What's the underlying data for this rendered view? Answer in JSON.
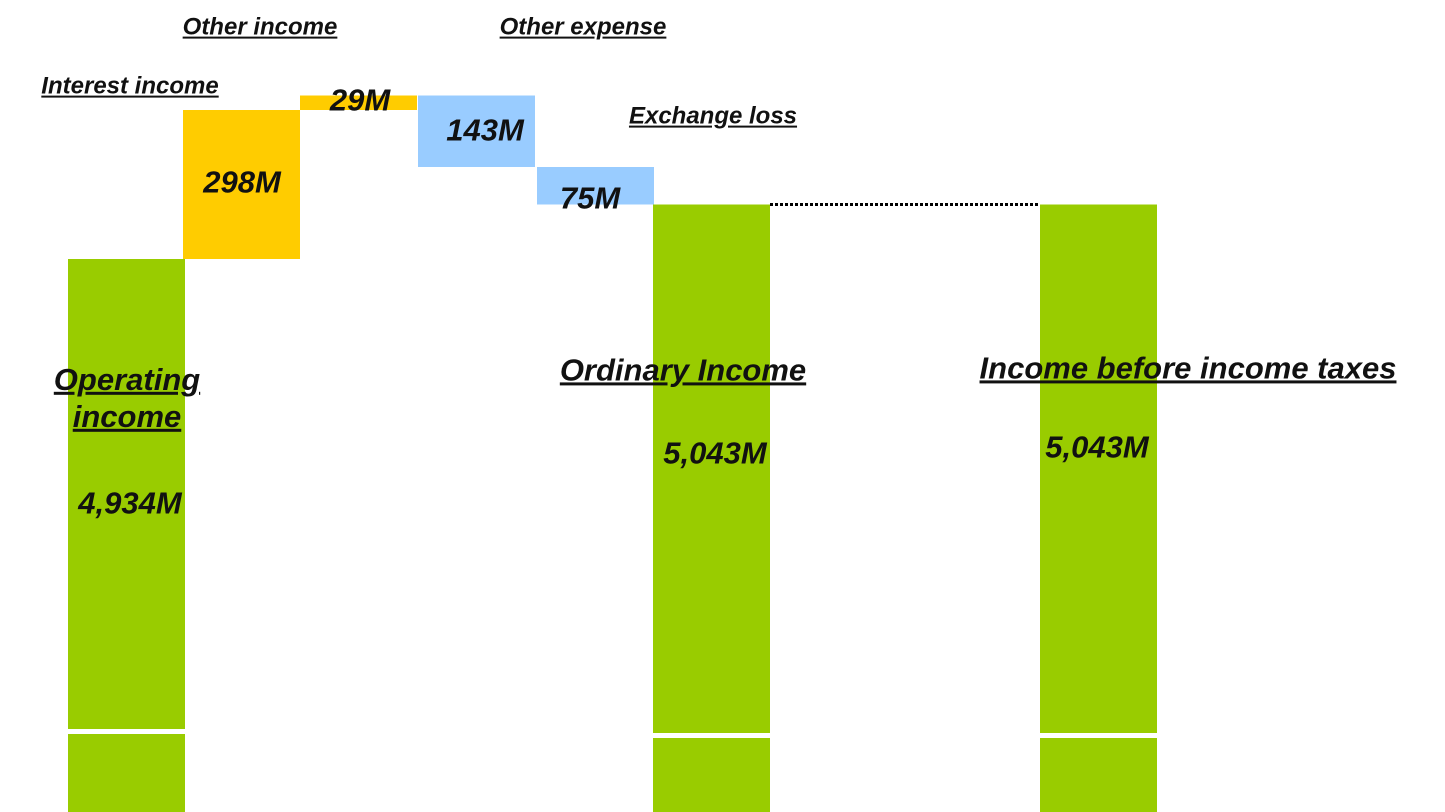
{
  "chart_data": {
    "type": "waterfall",
    "categories": [
      "Operating income",
      "Interest income",
      "Other income",
      "Other expense",
      "Exchange loss",
      "Ordinary Income",
      "Income before income taxes"
    ],
    "values": [
      4934,
      298,
      29,
      -143,
      -75,
      5043,
      5043
    ],
    "value_labels": [
      "4,934M",
      "298M",
      "29M",
      "143M",
      "75M",
      "5,043M",
      "5,043M"
    ],
    "measure": [
      "total",
      "relative",
      "relative",
      "relative",
      "relative",
      "total",
      "total"
    ],
    "colors": [
      "#99cc00",
      "#ffcc00",
      "#ffcc00",
      "#99ccff",
      "#99ccff",
      "#99cc00",
      "#99cc00"
    ],
    "ylim": [
      3830,
      5400
    ]
  }
}
